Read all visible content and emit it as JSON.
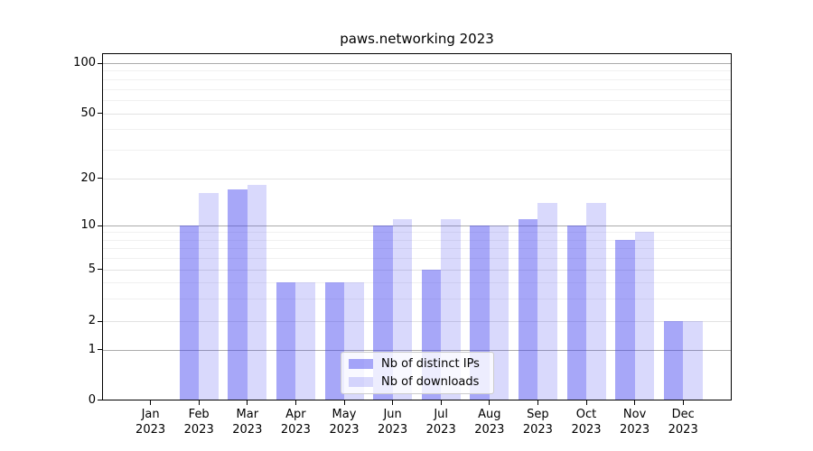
{
  "chart_data": {
    "type": "bar",
    "title": "paws.networking 2023",
    "x_labels": [
      [
        "Jan",
        "2023"
      ],
      [
        "Feb",
        "2023"
      ],
      [
        "Mar",
        "2023"
      ],
      [
        "Apr",
        "2023"
      ],
      [
        "May",
        "2023"
      ],
      [
        "Jun",
        "2023"
      ],
      [
        "Jul",
        "2023"
      ],
      [
        "Aug",
        "2023"
      ],
      [
        "Sep",
        "2023"
      ],
      [
        "Oct",
        "2023"
      ],
      [
        "Nov",
        "2023"
      ],
      [
        "Dec",
        "2023"
      ]
    ],
    "series": [
      {
        "name": "Nb of distinct IPs",
        "color_base": "#4040f0",
        "alpha": 0.46,
        "swatch_hex": "#a9a9f9",
        "values": [
          0,
          10,
          17,
          4,
          4,
          10,
          5,
          10,
          11,
          10,
          8,
          2
        ]
      },
      {
        "name": "Nb of downloads",
        "color_base": "#4040f0",
        "alpha": 0.2,
        "swatch_hex": "#d9d9fb",
        "values": [
          0,
          16,
          18,
          4,
          4,
          11,
          11,
          10,
          14,
          14,
          9,
          2
        ]
      }
    ],
    "y_axis": {
      "scale": "symlog",
      "ticks": [
        0,
        1,
        2,
        5,
        10,
        20,
        50,
        100
      ],
      "ylim": [
        0,
        120
      ]
    },
    "grid": {
      "major": [
        1,
        10,
        100
      ],
      "mid": [
        2,
        5,
        20,
        50
      ],
      "minor": [
        3,
        4,
        6,
        7,
        8,
        9,
        30,
        40,
        60,
        70,
        80,
        90
      ]
    },
    "legend": {
      "position": "lower center"
    }
  }
}
